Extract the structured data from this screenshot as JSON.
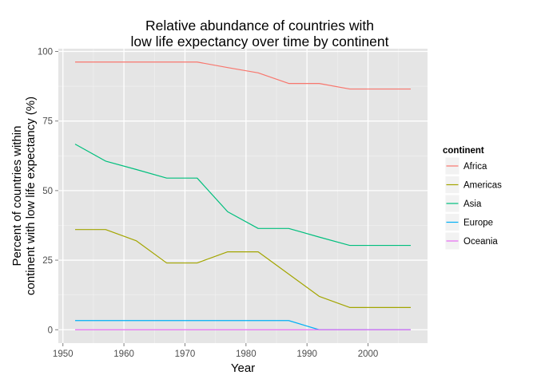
{
  "chart_data": {
    "type": "line",
    "title_line1": "Relative abundance of countries with",
    "title_line2": "low life expectancy over time by continent",
    "xlabel": "Year",
    "ylabel_line1": "Percent of countries within",
    "ylabel_line2": "continent with low life expectancy (%)",
    "xlim": [
      1949.25,
      2009.75
    ],
    "ylim": [
      -4.8,
      101.0
    ],
    "x_ticks": [
      1950,
      1960,
      1970,
      1980,
      1990,
      2000
    ],
    "x_tick_labels": [
      "1950",
      "1960",
      "1970",
      "1980",
      "1990",
      "2000"
    ],
    "y_ticks": [
      0,
      25,
      50,
      75,
      100
    ],
    "y_tick_labels": [
      "0",
      "25",
      "50",
      "75",
      "100"
    ],
    "grid": true,
    "legend_title": "continent",
    "legend_position": "right",
    "x": [
      1952,
      1957,
      1962,
      1967,
      1972,
      1977,
      1982,
      1987,
      1992,
      1997,
      2002,
      2007
    ],
    "series": [
      {
        "name": "Africa",
        "color": "#F8766D",
        "values": [
          96.2,
          96.2,
          96.2,
          96.2,
          96.2,
          94.2,
          92.3,
          88.5,
          88.5,
          86.5,
          86.5,
          86.5
        ]
      },
      {
        "name": "Americas",
        "color": "#A3A500",
        "values": [
          36.0,
          36.0,
          32.0,
          24.0,
          24.0,
          28.0,
          28.0,
          20.0,
          12.0,
          8.0,
          8.0,
          8.0
        ]
      },
      {
        "name": "Asia",
        "color": "#00BF7D",
        "values": [
          66.7,
          60.6,
          57.6,
          54.5,
          54.5,
          42.4,
          36.4,
          36.4,
          33.3,
          30.3,
          30.3,
          30.3
        ]
      },
      {
        "name": "Europe",
        "color": "#00B0F6",
        "values": [
          3.3,
          3.3,
          3.3,
          3.3,
          3.3,
          3.3,
          3.3,
          3.3,
          0.0,
          0.0,
          0.0,
          0.0
        ]
      },
      {
        "name": "Oceania",
        "color": "#E76BF3",
        "values": [
          0,
          0,
          0,
          0,
          0,
          0,
          0,
          0,
          0,
          0,
          0,
          0
        ]
      }
    ]
  }
}
